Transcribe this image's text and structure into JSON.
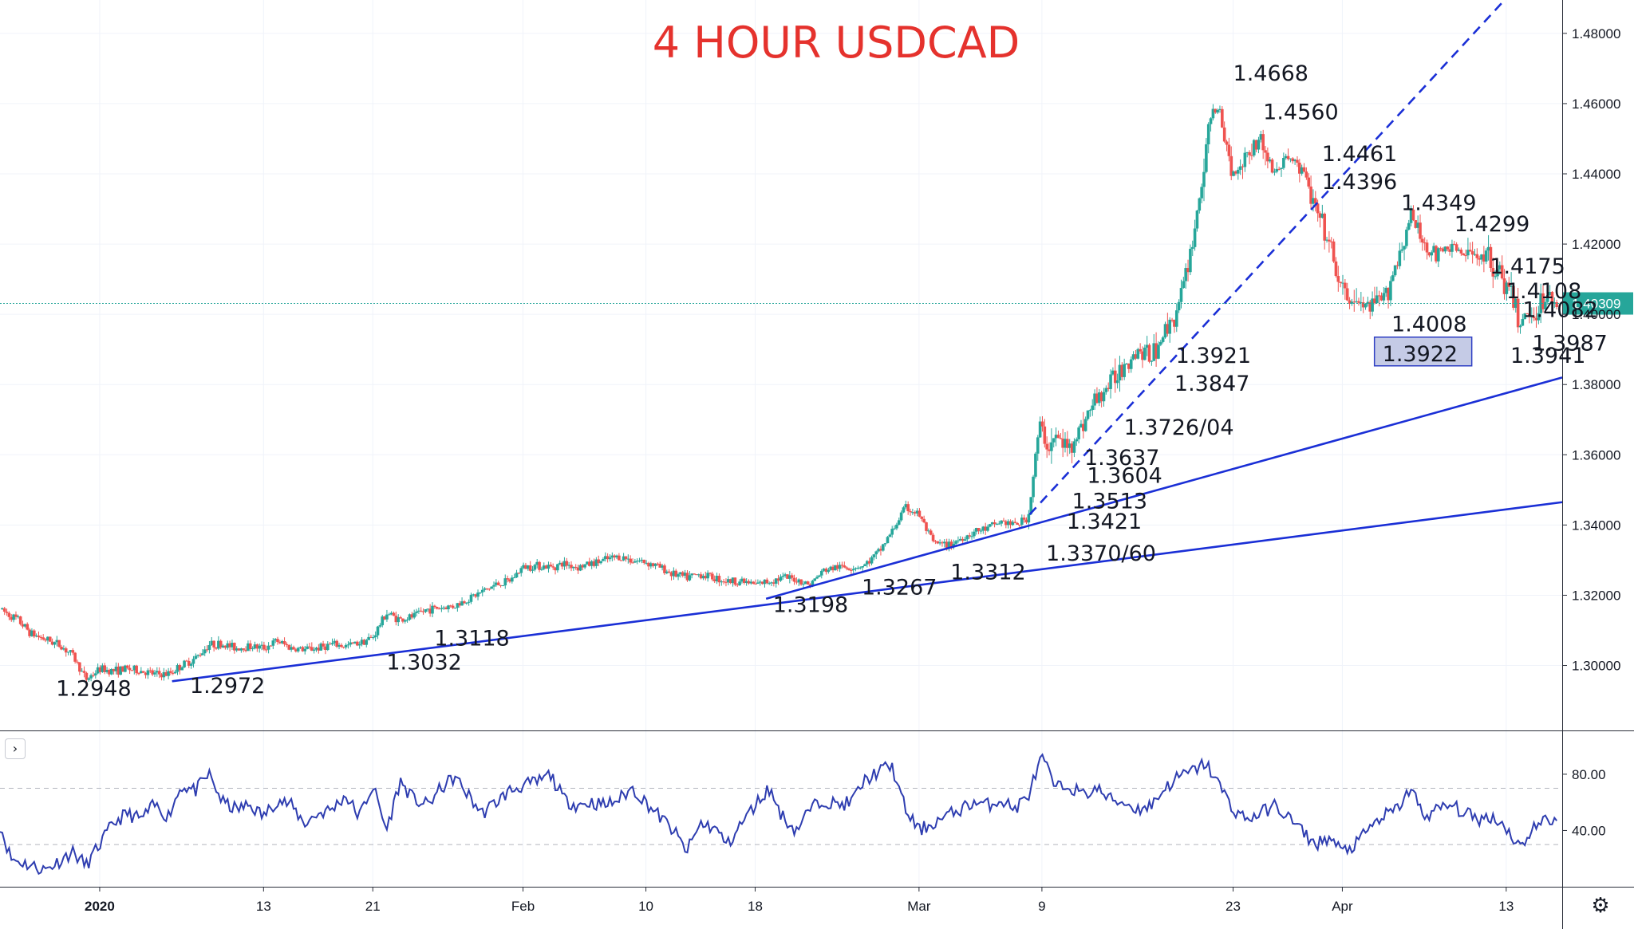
{
  "chart_data": {
    "type": "candlestick",
    "title": "4 HOUR USDCAD",
    "symbol": "USDCAD",
    "timeframe": "4 hour",
    "last_price": "1.40309",
    "last_price_value": 1.40309,
    "price_axis": {
      "ticks": [
        "1.30000",
        "1.32000",
        "1.34000",
        "1.36000",
        "1.38000",
        "1.40000",
        "1.42000",
        "1.44000",
        "1.46000",
        "1.48000"
      ],
      "tick_values": [
        1.3,
        1.32,
        1.34,
        1.36,
        1.38,
        1.4,
        1.42,
        1.44,
        1.46,
        1.48
      ],
      "ylim": [
        1.2815,
        1.4895
      ]
    },
    "time_axis": {
      "ticks": [
        "2020",
        "13",
        "21",
        "Feb",
        "10",
        "18",
        "Mar",
        "9",
        "23",
        "Apr",
        "13"
      ],
      "tick_days": [
        1,
        13,
        21,
        32,
        41,
        49,
        61,
        70,
        84,
        92,
        104
      ],
      "xlim_days": [
        -6.3,
        108.1
      ]
    },
    "price_path": [
      [
        -6.3,
        1.316
      ],
      [
        -5,
        1.313
      ],
      [
        -4,
        1.309
      ],
      [
        -3,
        1.3075
      ],
      [
        -2,
        1.306
      ],
      [
        -1,
        1.303
      ],
      [
        0,
        1.296
      ],
      [
        1,
        1.299
      ],
      [
        2,
        1.2985
      ],
      [
        3,
        1.299
      ],
      [
        4,
        1.2985
      ],
      [
        5,
        1.2975
      ],
      [
        6,
        1.2975
      ],
      [
        7,
        1.3
      ],
      [
        8,
        1.302
      ],
      [
        9,
        1.306
      ],
      [
        10,
        1.306
      ],
      [
        11,
        1.305
      ],
      [
        12,
        1.3055
      ],
      [
        13,
        1.305
      ],
      [
        14,
        1.307
      ],
      [
        15,
        1.305
      ],
      [
        16,
        1.3045
      ],
      [
        17,
        1.305
      ],
      [
        18,
        1.306
      ],
      [
        19,
        1.3055
      ],
      [
        20,
        1.3065
      ],
      [
        21,
        1.308
      ],
      [
        22,
        1.315
      ],
      [
        23,
        1.313
      ],
      [
        24,
        1.314
      ],
      [
        25,
        1.316
      ],
      [
        26,
        1.3165
      ],
      [
        27,
        1.317
      ],
      [
        28,
        1.319
      ],
      [
        29,
        1.321
      ],
      [
        30,
        1.323
      ],
      [
        31,
        1.324
      ],
      [
        32,
        1.328
      ],
      [
        33,
        1.3285
      ],
      [
        34,
        1.328
      ],
      [
        35,
        1.329
      ],
      [
        36,
        1.328
      ],
      [
        37,
        1.329
      ],
      [
        38,
        1.33
      ],
      [
        39,
        1.331
      ],
      [
        40,
        1.33
      ],
      [
        41,
        1.3295
      ],
      [
        42,
        1.328
      ],
      [
        43,
        1.326
      ],
      [
        44,
        1.325
      ],
      [
        45,
        1.326
      ],
      [
        46,
        1.325
      ],
      [
        47,
        1.324
      ],
      [
        48,
        1.324
      ],
      [
        49,
        1.323
      ],
      [
        50,
        1.324
      ],
      [
        51,
        1.325
      ],
      [
        52,
        1.3245
      ],
      [
        53,
        1.323
      ],
      [
        54,
        1.327
      ],
      [
        55,
        1.328
      ],
      [
        56,
        1.328
      ],
      [
        57,
        1.3285
      ],
      [
        58,
        1.332
      ],
      [
        59,
        1.338
      ],
      [
        60,
        1.345
      ],
      [
        61,
        1.343
      ],
      [
        62,
        1.335
      ],
      [
        63,
        1.334
      ],
      [
        64,
        1.336
      ],
      [
        65,
        1.338
      ],
      [
        66,
        1.339
      ],
      [
        67,
        1.341
      ],
      [
        68,
        1.34
      ],
      [
        69,
        1.342
      ],
      [
        69.8,
        1.368
      ],
      [
        70.5,
        1.362
      ],
      [
        71,
        1.365
      ],
      [
        72,
        1.362
      ],
      [
        73,
        1.369
      ],
      [
        74,
        1.376
      ],
      [
        75,
        1.38
      ],
      [
        76,
        1.386
      ],
      [
        77,
        1.39
      ],
      [
        78,
        1.388
      ],
      [
        79,
        1.395
      ],
      [
        80,
        1.402
      ],
      [
        81,
        1.42
      ],
      [
        82,
        1.445
      ],
      [
        82.5,
        1.46
      ],
      [
        83,
        1.456
      ],
      [
        84,
        1.44
      ],
      [
        85,
        1.446
      ],
      [
        86,
        1.45
      ],
      [
        87,
        1.44
      ],
      [
        88,
        1.445
      ],
      [
        89,
        1.442
      ],
      [
        90,
        1.43
      ],
      [
        91,
        1.42
      ],
      [
        92,
        1.406
      ],
      [
        93,
        1.403
      ],
      [
        94,
        1.402
      ],
      [
        95,
        1.404
      ],
      [
        96,
        1.415
      ],
      [
        97,
        1.428
      ],
      [
        98,
        1.42
      ],
      [
        99,
        1.416
      ],
      [
        100,
        1.42
      ],
      [
        101,
        1.416
      ],
      [
        102,
        1.418
      ],
      [
        103,
        1.415
      ],
      [
        104,
        1.408
      ],
      [
        105,
        1.398
      ],
      [
        106,
        1.401
      ],
      [
        107,
        1.405
      ],
      [
        107.8,
        1.4031
      ]
    ],
    "trendlines": [
      {
        "style": "solid",
        "points": [
          [
            6.3,
            1.2955
          ],
          [
            108.1,
            1.3465
          ]
        ]
      },
      {
        "style": "solid",
        "points": [
          [
            49.8,
            1.319
          ],
          [
            108.1,
            1.382
          ]
        ]
      },
      {
        "style": "dashed",
        "points": [
          [
            69.1,
            1.343
          ],
          [
            104.0,
            1.49
          ]
        ]
      }
    ],
    "annotations": [
      {
        "text": "1.2948",
        "day": -2.2,
        "price": 1.2937
      },
      {
        "text": "1.2972",
        "day": 7.6,
        "price": 1.2944
      },
      {
        "text": "1.3032",
        "day": 22.0,
        "price": 1.3011
      },
      {
        "text": "1.3118",
        "day": 25.5,
        "price": 1.3079
      },
      {
        "text": "1.3198",
        "day": 50.3,
        "price": 1.3175
      },
      {
        "text": "1.3267",
        "day": 56.8,
        "price": 1.3225
      },
      {
        "text": "1.3312",
        "day": 63.3,
        "price": 1.3268
      },
      {
        "text": "1.3370/60",
        "day": 70.3,
        "price": 1.3321
      },
      {
        "text": "1.3421",
        "day": 71.8,
        "price": 1.3412
      },
      {
        "text": "1.3513",
        "day": 72.2,
        "price": 1.347
      },
      {
        "text": "1.3604",
        "day": 73.3,
        "price": 1.3543
      },
      {
        "text": "1.3637",
        "day": 73.1,
        "price": 1.3594
      },
      {
        "text": "1.3726/04",
        "day": 76.0,
        "price": 1.368
      },
      {
        "text": "1.3847",
        "day": 79.7,
        "price": 1.3805
      },
      {
        "text": "1.3921",
        "day": 79.8,
        "price": 1.3884
      },
      {
        "text": "1.4668",
        "day": 84.0,
        "price": 1.4688
      },
      {
        "text": "1.4560",
        "day": 86.2,
        "price": 1.4578
      },
      {
        "text": "1.4461",
        "day": 90.5,
        "price": 1.4459
      },
      {
        "text": "1.4396",
        "day": 90.5,
        "price": 1.4379
      },
      {
        "text": "1.4349",
        "day": 96.3,
        "price": 1.4319
      },
      {
        "text": "1.4299",
        "day": 100.2,
        "price": 1.4259
      },
      {
        "text": "1.4175",
        "day": 102.8,
        "price": 1.4139
      },
      {
        "text": "1.4108",
        "day": 104.0,
        "price": 1.4069
      },
      {
        "text": "1.4082",
        "day": 105.2,
        "price": 1.4015
      },
      {
        "text": "1.4008",
        "day": 95.6,
        "price": 1.3974
      },
      {
        "text": "1.3987",
        "day": 105.9,
        "price": 1.392
      },
      {
        "text": "1.3941",
        "day": 104.3,
        "price": 1.3885
      }
    ],
    "boxed_annotation": {
      "text": "1.3922",
      "day": 94.7,
      "price": 1.3885
    },
    "oscillator": {
      "ticks": [
        "40.00",
        "80.00"
      ],
      "tick_values": [
        40,
        80
      ],
      "levels": [
        30,
        70
      ],
      "ylim": [
        0,
        110
      ],
      "path": [
        [
          -6.3,
          44
        ],
        [
          -5.5,
          20
        ],
        [
          -4,
          15
        ],
        [
          -3,
          12
        ],
        [
          -2,
          18
        ],
        [
          -1,
          25
        ],
        [
          0,
          15
        ],
        [
          1,
          30
        ],
        [
          2,
          45
        ],
        [
          3,
          52
        ],
        [
          4,
          48
        ],
        [
          5,
          58
        ],
        [
          6,
          50
        ],
        [
          7,
          72
        ],
        [
          8,
          68
        ],
        [
          9,
          80
        ],
        [
          10,
          60
        ],
        [
          11,
          55
        ],
        [
          12,
          58
        ],
        [
          13,
          50
        ],
        [
          14,
          62
        ],
        [
          15,
          58
        ],
        [
          16,
          45
        ],
        [
          17,
          52
        ],
        [
          18,
          55
        ],
        [
          19,
          65
        ],
        [
          20,
          50
        ],
        [
          21,
          72
        ],
        [
          22,
          40
        ],
        [
          23,
          75
        ],
        [
          24,
          62
        ],
        [
          25,
          58
        ],
        [
          26,
          70
        ],
        [
          27,
          78
        ],
        [
          28,
          65
        ],
        [
          29,
          52
        ],
        [
          30,
          60
        ],
        [
          31,
          68
        ],
        [
          32,
          72
        ],
        [
          33,
          74
        ],
        [
          34,
          80
        ],
        [
          35,
          62
        ],
        [
          36,
          58
        ],
        [
          37,
          60
        ],
        [
          38,
          58
        ],
        [
          39,
          62
        ],
        [
          40,
          70
        ],
        [
          41,
          60
        ],
        [
          42,
          50
        ],
        [
          43,
          40
        ],
        [
          44,
          25
        ],
        [
          45,
          45
        ],
        [
          46,
          42
        ],
        [
          47,
          30
        ],
        [
          48,
          45
        ],
        [
          49,
          58
        ],
        [
          50,
          70
        ],
        [
          51,
          50
        ],
        [
          52,
          40
        ],
        [
          53,
          55
        ],
        [
          54,
          62
        ],
        [
          55,
          58
        ],
        [
          56,
          60
        ],
        [
          57,
          75
        ],
        [
          58,
          82
        ],
        [
          59,
          86
        ],
        [
          60,
          55
        ],
        [
          61,
          40
        ],
        [
          62,
          45
        ],
        [
          63,
          50
        ],
        [
          64,
          55
        ],
        [
          65,
          60
        ],
        [
          66,
          58
        ],
        [
          67,
          62
        ],
        [
          68,
          55
        ],
        [
          69,
          65
        ],
        [
          70,
          92
        ],
        [
          71,
          70
        ],
        [
          72,
          72
        ],
        [
          73,
          65
        ],
        [
          74,
          70
        ],
        [
          75,
          62
        ],
        [
          76,
          60
        ],
        [
          77,
          55
        ],
        [
          78,
          58
        ],
        [
          79,
          70
        ],
        [
          80,
          78
        ],
        [
          81,
          82
        ],
        [
          82,
          88
        ],
        [
          83,
          72
        ],
        [
          84,
          55
        ],
        [
          85,
          48
        ],
        [
          86,
          52
        ],
        [
          87,
          58
        ],
        [
          88,
          50
        ],
        [
          89,
          40
        ],
        [
          90,
          30
        ],
        [
          91,
          35
        ],
        [
          92,
          25
        ],
        [
          93,
          30
        ],
        [
          94,
          42
        ],
        [
          95,
          50
        ],
        [
          96,
          55
        ],
        [
          97,
          70
        ],
        [
          98,
          50
        ],
        [
          99,
          55
        ],
        [
          100,
          58
        ],
        [
          101,
          52
        ],
        [
          102,
          48
        ],
        [
          103,
          50
        ],
        [
          104,
          42
        ],
        [
          105,
          28
        ],
        [
          106,
          42
        ],
        [
          107,
          48
        ],
        [
          107.8,
          46
        ]
      ]
    },
    "colors": {
      "bullish": "#26a69a",
      "bearish": "#ef5350",
      "trendline": "#1a2fd6",
      "oscillator": "#2e3db0",
      "title": "#e5322d",
      "price_tag": "#26a69a",
      "box_fill": "#c5cbe6",
      "box_border": "#2f3fc4"
    },
    "grid": true
  },
  "ui": {
    "collapse_icon": "chevron-right-icon",
    "collapse_glyph": "›",
    "settings_icon": "gear-icon",
    "settings_glyph": "⚙"
  }
}
